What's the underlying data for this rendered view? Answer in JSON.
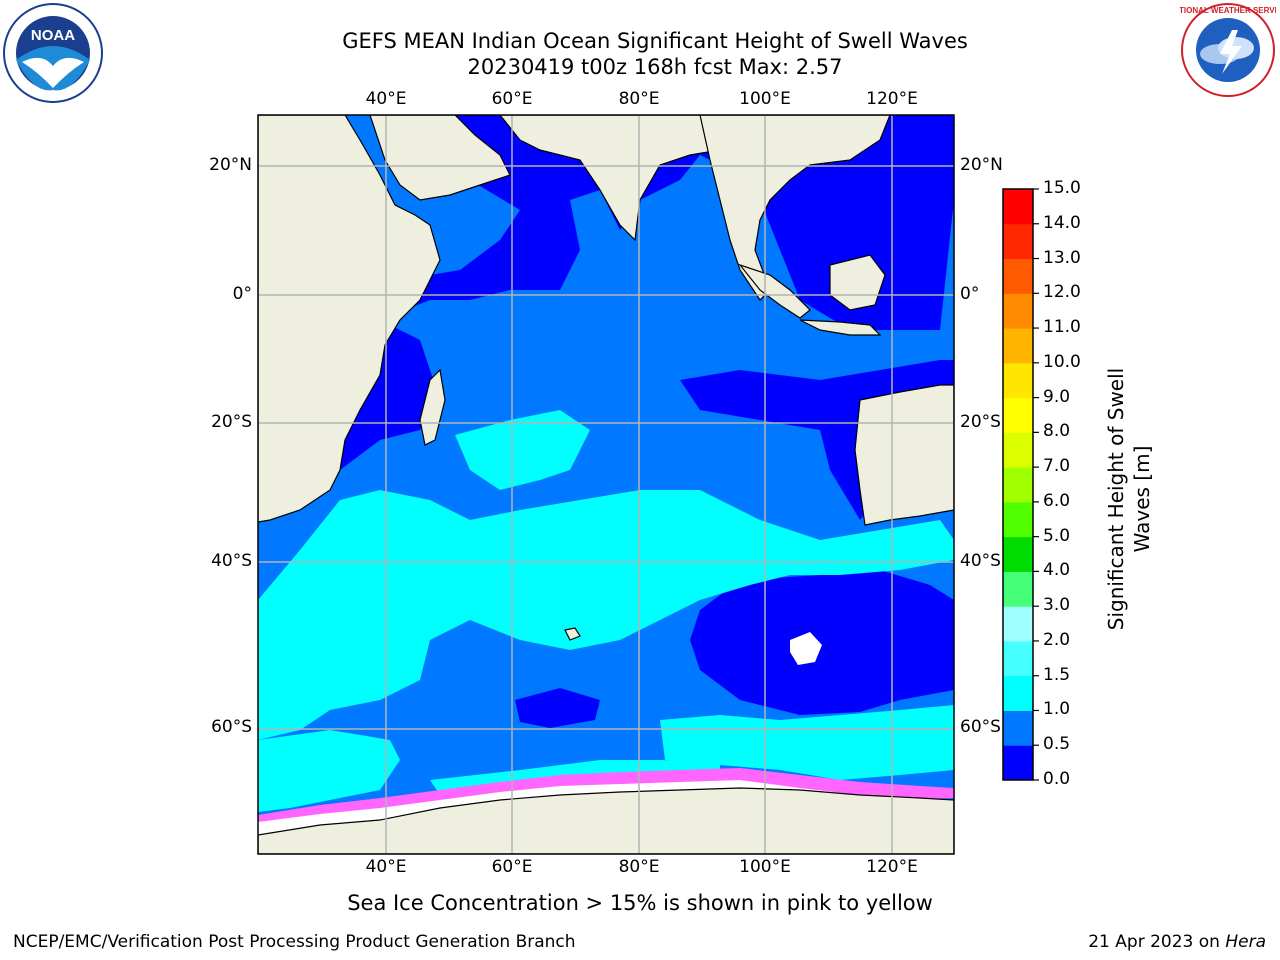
{
  "title": {
    "line1": "GEFS MEAN Indian Ocean Significant Height of Swell Waves",
    "line2": "20230419 t00z 168h fcst   Max: 2.57"
  },
  "map": {
    "lon_labels": [
      "40°E",
      "60°E",
      "80°E",
      "100°E",
      "120°E"
    ],
    "lat_labels_left": [
      "20°N",
      "0°",
      "20°S",
      "40°S",
      "60°S"
    ],
    "lat_labels_right": [
      "20°N",
      "0°",
      "20°S",
      "40°S",
      "60°S"
    ],
    "colors": {
      "land": "#efefdf",
      "coast": "#000000",
      "grid": "#b4b4b4",
      "no_data": "#ffffff",
      "sea_ice": "#ff66ff"
    }
  },
  "colorbar": {
    "label": "Significant Height of Swell Waves [m]",
    "ticks": [
      "0.0",
      "0.5",
      "1.0",
      "1.5",
      "2.0",
      "3.0",
      "4.0",
      "5.0",
      "6.0",
      "7.0",
      "8.0",
      "9.0",
      "10.0",
      "11.0",
      "12.0",
      "13.0",
      "14.0",
      "15.0"
    ],
    "colors": [
      "#0000ff",
      "#0078ff",
      "#00ffff",
      "#46ffff",
      "#a0ffff",
      "#46ff78",
      "#00dc00",
      "#50ff00",
      "#a0ff00",
      "#dcff00",
      "#ffff00",
      "#ffe600",
      "#ffb400",
      "#ff8c00",
      "#ff5a00",
      "#ff2800",
      "#ff0000"
    ]
  },
  "caption": "Sea Ice Concentration > 15% is shown in pink to yellow",
  "footer": {
    "left": "NCEP/EMC/Verification Post Processing Product Generation Branch",
    "right_date": "21 Apr 2023 on ",
    "right_host": "Hera"
  },
  "logos": {
    "noaa": "NOAA",
    "nws": "NATIONAL WEATHER SERVICE"
  }
}
